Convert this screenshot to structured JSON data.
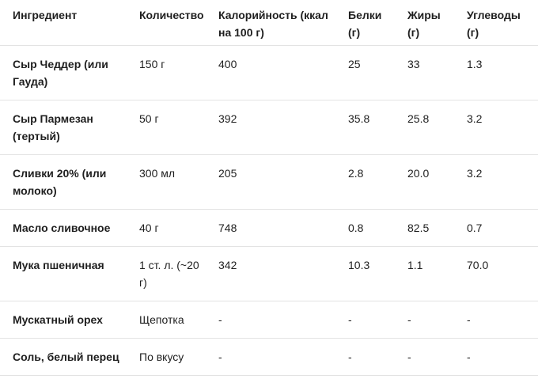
{
  "table": {
    "header": [
      "Ингредиент",
      "Количество",
      "Калорийность (ккал на 100 г)",
      "Белки (г)",
      "Жиры (г)",
      "Углеводы (г)"
    ],
    "rows": [
      [
        "Сыр Чеддер (или Гауда)",
        "150 г",
        "400",
        "25",
        "33",
        "1.3"
      ],
      [
        "Сыр Пармезан (тертый)",
        "50 г",
        "392",
        "35.8",
        "25.8",
        "3.2"
      ],
      [
        "Сливки 20% (или молоко)",
        "300 мл",
        "205",
        "2.8",
        "20.0",
        "3.2"
      ],
      [
        "Масло сливочное",
        "40 г",
        "748",
        "0.8",
        "82.5",
        "0.7"
      ],
      [
        "Мука пшеничная",
        "1 ст. л. (~20 г)",
        "342",
        "10.3",
        "1.1",
        "70.0"
      ],
      [
        "Мускатный орех",
        "Щепотка",
        "-",
        "-",
        "-",
        "-"
      ],
      [
        "Соль, белый перец",
        "По вкусу",
        "-",
        "-",
        "-",
        "-"
      ]
    ]
  }
}
